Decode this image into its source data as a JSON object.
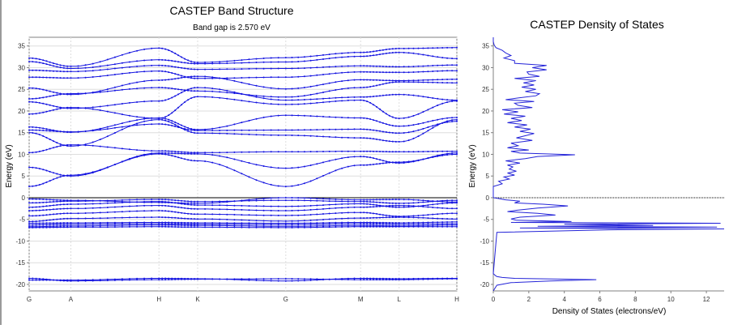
{
  "colors": {
    "band": "#1414e0",
    "dos": "#2424d8",
    "grid": "#dedede",
    "axis": "#808080",
    "fermi": "#000000"
  },
  "chart_data": [
    {
      "type": "line",
      "title": "CASTEP Band Structure",
      "subtitle": "Band gap is 2.570 eV",
      "xlabel": "",
      "ylabel": "Energy (eV)",
      "ylim": [
        -21.5,
        37
      ],
      "yticks": [
        35,
        30,
        25,
        20,
        15,
        10,
        5,
        0,
        -5,
        -10,
        -15,
        -20
      ],
      "kpoints": [
        "G",
        "A",
        "H",
        "K",
        "G",
        "M",
        "L",
        "H"
      ],
      "kpos": [
        0,
        0.0975,
        0.3035,
        0.394,
        0.6,
        0.775,
        0.865,
        1
      ],
      "fermi_level": 0,
      "bands": [
        [
          -19.0,
          -19.0,
          -18.6,
          -18.7,
          -19.2,
          -18.6,
          -18.7,
          -18.6
        ],
        [
          -18.6,
          -19.2,
          -18.9,
          -18.8,
          -18.7,
          -18.9,
          -18.9,
          -18.7
        ],
        [
          -6.9,
          -6.8,
          -6.7,
          -6.8,
          -6.9,
          -6.7,
          -6.7,
          -6.7
        ],
        [
          -6.7,
          -6.5,
          -6.3,
          -6.4,
          -6.6,
          -6.4,
          -6.5,
          -6.3
        ],
        [
          -6.3,
          -6.1,
          -6.0,
          -6.1,
          -6.2,
          -6.0,
          -6.1,
          -6.0
        ],
        [
          -5.9,
          -5.8,
          -5.7,
          -5.8,
          -5.9,
          -5.7,
          -5.8,
          -5.6
        ],
        [
          -5.5,
          -4.8,
          -4.5,
          -4.9,
          -5.4,
          -4.7,
          -4.5,
          -4.9
        ],
        [
          -4.2,
          -3.6,
          -3.0,
          -3.8,
          -4.1,
          -3.4,
          -4.3,
          -3.6
        ],
        [
          -3.0,
          -2.5,
          -1.8,
          -2.6,
          -3.0,
          -2.2,
          -1.8,
          -2.5
        ],
        [
          -2.2,
          -1.5,
          -0.9,
          -1.7,
          -2.0,
          -1.4,
          -2.2,
          -1.2
        ],
        [
          -1.2,
          -0.8,
          -0.4,
          -0.9,
          -0.6,
          -0.9,
          -1.3,
          -0.6
        ],
        [
          -0.3,
          -0.6,
          -1.1,
          -1.3,
          0.0,
          -0.5,
          -0.4,
          -1.0
        ],
        [
          2.6,
          5.2,
          10.1,
          8.5,
          2.6,
          7.5,
          8.2,
          10.0
        ],
        [
          7.0,
          5.0,
          10.3,
          10.1,
          6.8,
          9.5,
          8.0,
          10.3
        ],
        [
          10.4,
          12.2,
          10.8,
          10.4,
          10.6,
          10.7,
          10.6,
          10.7
        ],
        [
          15.0,
          11.9,
          18.0,
          14.9,
          14.4,
          13.8,
          12.9,
          18.0
        ],
        [
          15.6,
          15.2,
          17.0,
          15.5,
          15.6,
          15.8,
          14.9,
          17.6
        ],
        [
          16.3,
          15.1,
          18.4,
          15.7,
          19.0,
          18.4,
          16.5,
          18.5
        ],
        [
          19.3,
          20.8,
          18.3,
          23.3,
          21.5,
          22.5,
          18.3,
          22.3
        ],
        [
          22.1,
          20.6,
          22.3,
          25.4,
          22.5,
          23.2,
          23.8,
          22.5
        ],
        [
          22.8,
          24.0,
          25.4,
          24.6,
          23.2,
          25.4,
          26.7,
          26.5
        ],
        [
          25.3,
          23.8,
          27.1,
          28.0,
          25.1,
          27.2,
          27.0,
          27.3
        ],
        [
          27.8,
          27.6,
          29.2,
          27.5,
          27.8,
          29.0,
          28.9,
          29.3
        ],
        [
          29.4,
          29.1,
          30.5,
          29.6,
          29.8,
          30.4,
          30.2,
          30.6
        ],
        [
          31.4,
          29.8,
          31.8,
          30.9,
          31.3,
          32.6,
          33.5,
          32.1
        ],
        [
          32.2,
          30.3,
          34.5,
          31.2,
          32.3,
          33.5,
          34.4,
          34.6
        ]
      ]
    },
    {
      "type": "line",
      "title": "CASTEP Density of States",
      "xlabel": "Density of States (electrons/eV)",
      "ylabel": "Energy (eV)",
      "xlim": [
        0,
        13
      ],
      "ylim": [
        -21.5,
        37
      ],
      "xticks": [
        0,
        2,
        4,
        6,
        8,
        10,
        12
      ],
      "yticks": [
        35,
        30,
        25,
        20,
        15,
        10,
        5,
        0,
        -5,
        -10,
        -15,
        -20
      ],
      "fermi_level": 0,
      "series": [
        {
          "energy": [
            -21.5,
            -20.2,
            -19.6,
            -19.2,
            -18.9,
            -18.6,
            -18.4,
            -18.2,
            -17.9,
            -17.5,
            -8.0,
            -7.4,
            -7.2,
            -7.0,
            -6.8,
            -6.6,
            -6.4,
            -6.1,
            -5.9,
            -5.7,
            -5.5,
            -5.2,
            -4.9,
            -4.5,
            -4.0,
            -3.6,
            -3.2,
            -2.9,
            -2.4,
            -1.9,
            -1.5,
            -1.2,
            -0.8,
            -0.5,
            -0.2,
            0.0,
            2.6,
            3.2,
            3.8,
            4.3,
            4.8,
            5.2,
            5.7,
            6.1,
            6.6,
            7.1,
            7.5,
            8.0,
            8.5,
            9.0,
            9.5,
            9.9,
            10.3,
            10.7,
            11.0,
            11.5,
            12.0,
            12.6,
            13.2,
            13.8,
            14.3,
            14.8,
            15.3,
            15.8,
            16.3,
            16.8,
            17.3,
            17.8,
            18.3,
            18.8,
            19.3,
            19.8,
            20.3,
            20.8,
            21.3,
            21.8,
            22.2,
            22.6,
            23.0,
            23.5,
            24.0,
            24.5,
            25.0,
            25.5,
            26.0,
            26.5,
            27.0,
            27.5,
            28.0,
            28.5,
            29.0,
            29.5,
            30.0,
            30.5,
            31.0,
            31.6,
            32.2,
            32.8,
            33.4,
            34.0,
            34.6,
            35.2,
            36.0,
            37.0
          ],
          "dos": [
            0,
            0.2,
            1.0,
            3.2,
            5.8,
            1.2,
            0.5,
            0.2,
            0.1,
            0,
            0.2,
            6.5,
            13.0,
            1.5,
            12.6,
            2.5,
            9.0,
            4.0,
            12.8,
            1.0,
            4.4,
            1.3,
            1.0,
            1.5,
            3.5,
            2.5,
            0.8,
            1.3,
            2.5,
            4.2,
            2.8,
            1.2,
            1.5,
            0.7,
            0.3,
            0,
            0,
            0.5,
            0.3,
            0.9,
            0.6,
            1.2,
            0.8,
            1.3,
            0.9,
            1.1,
            0.8,
            1.5,
            0.7,
            1.8,
            2.5,
            4.6,
            1.5,
            1.0,
            2.0,
            0.8,
            1.4,
            1.0,
            2.2,
            1.3,
            1.8,
            2.3,
            1.5,
            2.1,
            1.2,
            1.9,
            0.8,
            1.6,
            1.0,
            1.8,
            0.6,
            1.4,
            0.5,
            2.2,
            1.4,
            1.2,
            2.3,
            0.7,
            1.4,
            2.4,
            2.6,
            1.8,
            2.4,
            1.6,
            2.3,
            1.7,
            2.4,
            1.2,
            2.6,
            2.0,
            1.9,
            3.0,
            2.2,
            3.0,
            1.2,
            1.2,
            0.6,
            1.0,
            0.7,
            0.5,
            0.15,
            0.05,
            0,
            0
          ]
        }
      ]
    }
  ]
}
